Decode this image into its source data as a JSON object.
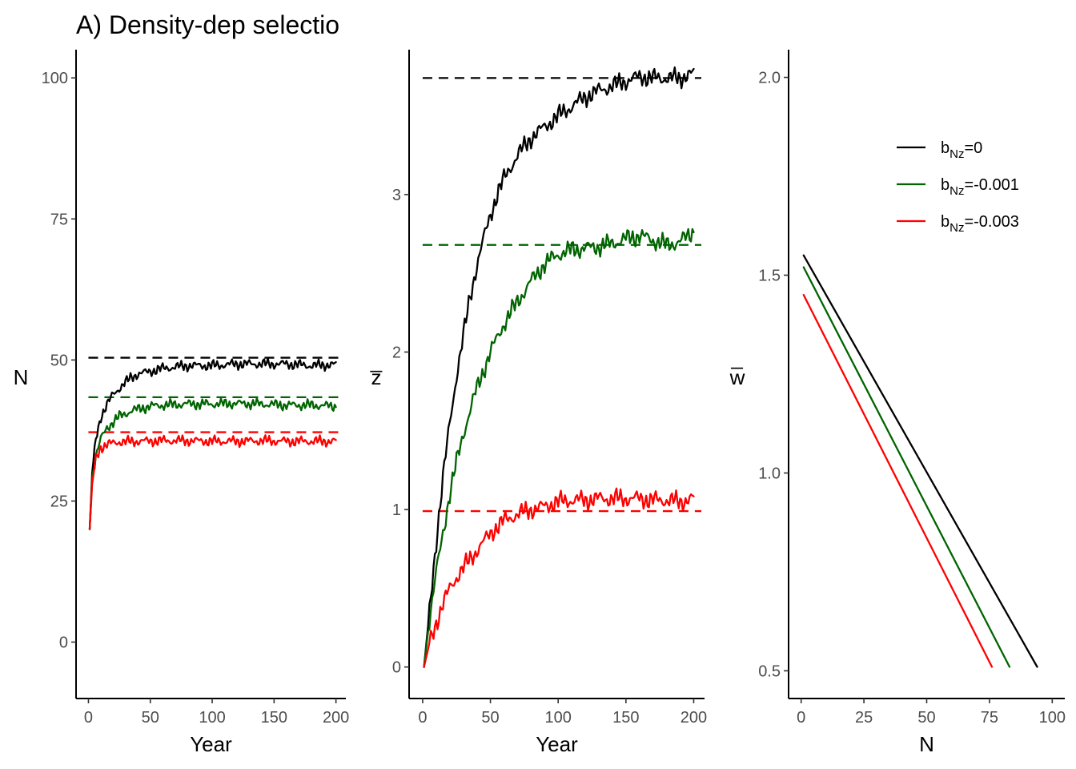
{
  "title": "A) Density-dep selectio",
  "colors": {
    "b0": "#000000",
    "b001": "#006400",
    "b003": "#ff0000",
    "tick_text": "#4d4d4d"
  },
  "legend": {
    "placement": "top-right of right panel",
    "items": [
      {
        "base": "b",
        "sub": "Nz",
        "rest": "=0",
        "color": "#000000"
      },
      {
        "base": "b",
        "sub": "Nz",
        "rest": "=-0.001",
        "color": "#006400"
      },
      {
        "base": "b",
        "sub": "Nz",
        "rest": "=-0.003",
        "color": "#ff0000"
      }
    ]
  },
  "chart_data": [
    {
      "type": "line",
      "panel": "N over time",
      "xlabel": "Year",
      "ylabel": "N",
      "xlim": [
        -10,
        208
      ],
      "ylim": [
        -10,
        105
      ],
      "xticks": [
        0,
        50,
        100,
        150,
        200
      ],
      "yticks": [
        0,
        25,
        50,
        75,
        100
      ],
      "xtick_labels": [
        "0",
        "50",
        "100",
        "150",
        "200"
      ],
      "ytick_labels": [
        "0",
        "25",
        "50",
        "75",
        "100"
      ],
      "grid": false,
      "series": [
        {
          "color": "#000000",
          "equilibrium": 50.4,
          "x": [
            1,
            3,
            6,
            10,
            15,
            20,
            25,
            30,
            35,
            40,
            50,
            60,
            80,
            100,
            120,
            140,
            160,
            180,
            200
          ],
          "y": [
            20,
            30,
            36,
            40,
            42,
            44,
            45,
            46,
            47,
            47.5,
            48,
            48.5,
            49,
            49,
            49.3,
            49.3,
            49.3,
            49,
            49.2
          ]
        },
        {
          "color": "#006400",
          "equilibrium": 43.4,
          "x": [
            1,
            3,
            6,
            10,
            15,
            20,
            25,
            30,
            35,
            40,
            50,
            60,
            80,
            100,
            120,
            140,
            160,
            180,
            200
          ],
          "y": [
            20,
            29,
            33,
            36,
            38,
            39,
            40,
            40.5,
            41,
            41.3,
            41.8,
            42,
            42.2,
            42.2,
            42.3,
            42.2,
            42,
            42,
            41.8
          ]
        },
        {
          "color": "#ff0000",
          "equilibrium": 37.2,
          "x": [
            1,
            3,
            6,
            10,
            15,
            20,
            25,
            30,
            40,
            60,
            80,
            100,
            120,
            140,
            160,
            180,
            200
          ],
          "y": [
            20,
            28,
            32.5,
            34.5,
            35,
            35.3,
            35.5,
            35.5,
            35.6,
            35.7,
            35.7,
            35.6,
            35.6,
            35.7,
            35.6,
            35.6,
            35.6
          ]
        }
      ]
    },
    {
      "type": "line",
      "panel": "mean z over time",
      "xlabel": "Year",
      "ylabel": "z̅",
      "xlim": [
        -10,
        208
      ],
      "ylim": [
        -0.2,
        3.92
      ],
      "xticks": [
        0,
        50,
        100,
        150,
        200
      ],
      "yticks": [
        0,
        1,
        2,
        3
      ],
      "xtick_labels": [
        "0",
        "50",
        "100",
        "150",
        "200"
      ],
      "ytick_labels": [
        "0",
        "1",
        "2",
        "3"
      ],
      "grid": false,
      "series": [
        {
          "color": "#000000",
          "equilibrium": 3.74,
          "x": [
            1,
            5,
            10,
            15,
            20,
            25,
            30,
            35,
            40,
            45,
            50,
            55,
            60,
            70,
            80,
            90,
            100,
            110,
            120,
            130,
            140,
            150,
            160,
            170,
            180,
            190,
            200
          ],
          "y": [
            0,
            0.35,
            0.8,
            1.2,
            1.55,
            1.85,
            2.1,
            2.35,
            2.55,
            2.72,
            2.87,
            3.0,
            3.1,
            3.25,
            3.36,
            3.43,
            3.5,
            3.56,
            3.62,
            3.66,
            3.69,
            3.72,
            3.75,
            3.74,
            3.74,
            3.74,
            3.77
          ]
        },
        {
          "color": "#006400",
          "equilibrium": 2.68,
          "x": [
            1,
            5,
            10,
            15,
            20,
            25,
            30,
            35,
            40,
            50,
            60,
            70,
            80,
            90,
            100,
            110,
            120,
            130,
            140,
            150,
            160,
            170,
            180,
            190,
            200
          ],
          "y": [
            0,
            0.3,
            0.6,
            0.85,
            1.1,
            1.3,
            1.48,
            1.63,
            1.77,
            2.0,
            2.18,
            2.32,
            2.45,
            2.56,
            2.62,
            2.65,
            2.66,
            2.67,
            2.69,
            2.72,
            2.74,
            2.71,
            2.68,
            2.7,
            2.77
          ]
        },
        {
          "color": "#ff0000",
          "equilibrium": 0.99,
          "x": [
            1,
            5,
            10,
            15,
            20,
            25,
            30,
            40,
            50,
            60,
            70,
            80,
            90,
            100,
            110,
            120,
            130,
            140,
            150,
            160,
            170,
            180,
            190,
            200
          ],
          "y": [
            0,
            0.15,
            0.28,
            0.4,
            0.5,
            0.57,
            0.63,
            0.74,
            0.85,
            0.93,
            0.97,
            1.0,
            1.02,
            1.05,
            1.06,
            1.06,
            1.07,
            1.07,
            1.07,
            1.07,
            1.06,
            1.06,
            1.05,
            1.07
          ]
        }
      ]
    },
    {
      "type": "line",
      "panel": "mean fitness vs N",
      "xlabel": "N",
      "ylabel": "w̅",
      "xlim": [
        -5,
        105
      ],
      "ylim": [
        0.43,
        2.07
      ],
      "xticks": [
        0,
        25,
        50,
        75,
        100
      ],
      "yticks": [
        0.5,
        1.0,
        1.5,
        2.0
      ],
      "xtick_labels": [
        "0",
        "25",
        "50",
        "75",
        "100"
      ],
      "ytick_labels": [
        "0.5",
        "1.0",
        "1.5",
        "2.0"
      ],
      "grid": false,
      "series": [
        {
          "color": "#000000",
          "x": [
            1,
            94
          ],
          "y": [
            1.55,
            0.51
          ]
        },
        {
          "color": "#006400",
          "x": [
            1,
            83
          ],
          "y": [
            1.52,
            0.51
          ]
        },
        {
          "color": "#ff0000",
          "x": [
            1,
            76
          ],
          "y": [
            1.45,
            0.51
          ]
        }
      ]
    }
  ]
}
